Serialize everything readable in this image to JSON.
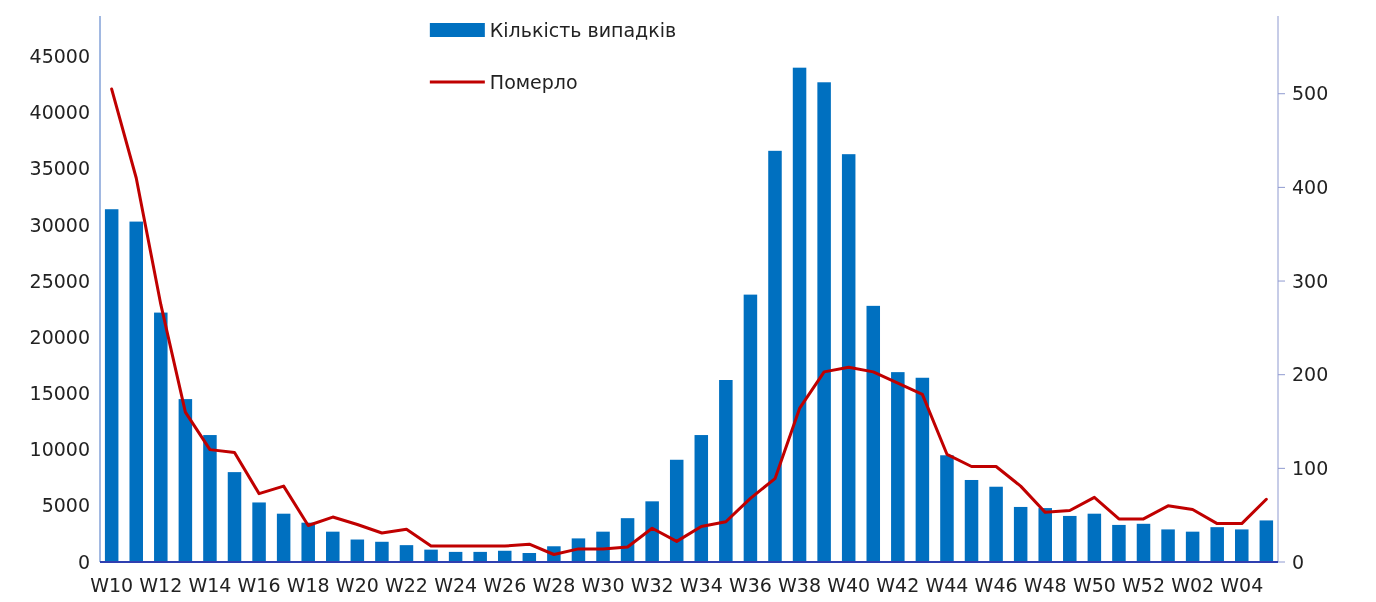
{
  "chart_data": {
    "type": "bar",
    "categories": [
      "W10",
      null,
      "W12",
      null,
      "W14",
      null,
      "W16",
      null,
      "W18",
      null,
      "W20",
      null,
      "W22",
      null,
      "W24",
      null,
      "W26",
      null,
      "W28",
      null,
      "W30",
      null,
      "W32",
      null,
      "W34",
      null,
      "W36",
      null,
      "W38",
      null,
      "W40",
      null,
      "W42",
      null,
      "W44",
      null,
      "W46",
      null,
      "W48",
      null,
      "W50",
      null,
      "W52",
      null,
      "W02",
      null,
      "W04",
      null
    ],
    "series": [
      {
        "name": "Кількість випадків",
        "color": "#0070c0",
        "values": [
          31400,
          30300,
          22200,
          14500,
          11300,
          8000,
          5300,
          4300,
          3500,
          2700,
          2000,
          1800,
          1500,
          1100,
          900,
          900,
          1000,
          800,
          1400,
          2100,
          2700,
          3900,
          5400,
          9100,
          11300,
          16200,
          23800,
          36600,
          44000,
          42700,
          36300,
          22800,
          16900,
          16400,
          9500,
          7300,
          6700,
          4900,
          4800,
          4100,
          4300,
          3300,
          3400,
          2900,
          2700,
          3100,
          2900,
          3700
        ]
      },
      {
        "name": "Померло",
        "type": "line",
        "axis": "y2",
        "color": "#c00000",
        "values": [
          505,
          410,
          275,
          160,
          120,
          117,
          73,
          81,
          39,
          48,
          40,
          31,
          35,
          17,
          17,
          17,
          17,
          19,
          8,
          14,
          14,
          16,
          36,
          22,
          38,
          43,
          68,
          89,
          164,
          203,
          208,
          203,
          191,
          179,
          115,
          102,
          102,
          81,
          53,
          55,
          69,
          46,
          46,
          60,
          56,
          41,
          41,
          67
        ]
      }
    ],
    "ylim": [
      0,
      48600
    ],
    "yticks": [
      0,
      5000,
      10000,
      15000,
      20000,
      25000,
      30000,
      35000,
      40000,
      45000
    ],
    "y2lim": [
      0,
      583
    ],
    "y2ticks": [
      0,
      100,
      200,
      300,
      400,
      500
    ],
    "legend": "top",
    "grid": false
  }
}
